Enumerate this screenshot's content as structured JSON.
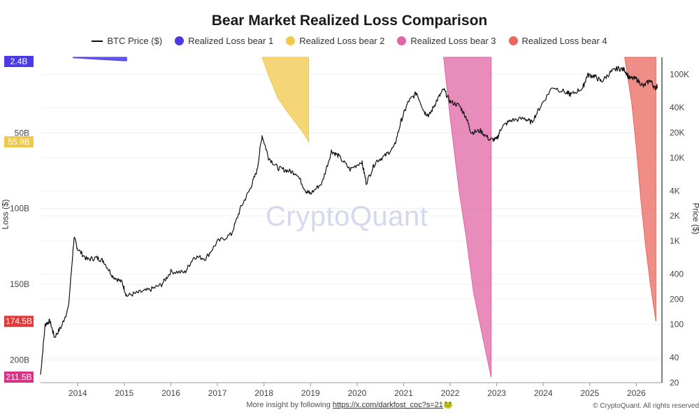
{
  "chart_data": {
    "type": "area",
    "title": "Bear Market Realized Loss Comparison",
    "legend_placement": "top-center",
    "legend": [
      {
        "label": "BTC Price ($)",
        "color": "#111111",
        "style": "line"
      },
      {
        "label": "Realized Loss bear 1",
        "color": "#4b3be0",
        "style": "dot"
      },
      {
        "label": "Realized Loss bear 2",
        "color": "#f0c84a",
        "style": "dot"
      },
      {
        "label": "Realized Loss bear 3",
        "color": "#e066a6",
        "style": "dot"
      },
      {
        "label": "Realized Loss bear 4",
        "color": "#e8685d",
        "style": "dot"
      }
    ],
    "x_axis": {
      "ticks": [
        "2014",
        "2015",
        "2016",
        "2017",
        "2018",
        "2019",
        "2020",
        "2021",
        "2022",
        "2023",
        "2024",
        "2025",
        "2026"
      ],
      "range": [
        2013.2,
        2026.55
      ]
    },
    "left_axis": {
      "label": "Loss ($)",
      "scale": "linear-inverted",
      "range_billion": [
        0,
        215
      ],
      "ticks": [
        "50B",
        "100B",
        "150B",
        "200B"
      ],
      "tick_values": [
        50,
        100,
        150,
        200
      ],
      "badges": [
        {
          "text": "2.4B",
          "value": 2.4,
          "color": "#4b3be0"
        },
        {
          "text": "55.9B",
          "value": 55.9,
          "color": "#f0c84a"
        },
        {
          "text": "174.5B",
          "value": 174.5,
          "color": "#e03a3a"
        },
        {
          "text": "211.5B",
          "value": 211.5,
          "color": "#d63384"
        }
      ]
    },
    "right_axis": {
      "label": "Price ($)",
      "scale": "log",
      "range": [
        20,
        160000
      ],
      "ticks": [
        "100K",
        "40K",
        "20K",
        "10K",
        "4K",
        "2K",
        "1K",
        "400",
        "200",
        "100",
        "40",
        "20"
      ],
      "tick_values": [
        100000,
        40000,
        20000,
        10000,
        4000,
        2000,
        1000,
        400,
        200,
        100,
        40,
        20
      ]
    },
    "price_series": {
      "name": "BTC Price ($)",
      "points": [
        [
          2013.2,
          25
        ],
        [
          2013.3,
          100
        ],
        [
          2013.4,
          110
        ],
        [
          2013.5,
          70
        ],
        [
          2013.65,
          95
        ],
        [
          2013.8,
          160
        ],
        [
          2013.92,
          1100
        ],
        [
          2014.0,
          800
        ],
        [
          2014.2,
          600
        ],
        [
          2014.4,
          630
        ],
        [
          2014.55,
          580
        ],
        [
          2014.75,
          380
        ],
        [
          2014.95,
          320
        ],
        [
          2015.05,
          220
        ],
        [
          2015.3,
          240
        ],
        [
          2015.55,
          260
        ],
        [
          2015.8,
          300
        ],
        [
          2016.0,
          430
        ],
        [
          2016.3,
          420
        ],
        [
          2016.5,
          650
        ],
        [
          2016.75,
          620
        ],
        [
          2017.0,
          980
        ],
        [
          2017.3,
          1200
        ],
        [
          2017.5,
          2500
        ],
        [
          2017.7,
          4200
        ],
        [
          2017.85,
          7000
        ],
        [
          2017.96,
          18500
        ],
        [
          2018.1,
          10000
        ],
        [
          2018.3,
          7500
        ],
        [
          2018.5,
          7000
        ],
        [
          2018.7,
          6500
        ],
        [
          2018.9,
          4000
        ],
        [
          2019.0,
          3700
        ],
        [
          2019.25,
          5000
        ],
        [
          2019.45,
          12000
        ],
        [
          2019.6,
          10500
        ],
        [
          2019.85,
          7200
        ],
        [
          2020.1,
          9000
        ],
        [
          2020.2,
          5000
        ],
        [
          2020.4,
          9000
        ],
        [
          2020.6,
          10500
        ],
        [
          2020.8,
          13500
        ],
        [
          2020.95,
          28000
        ],
        [
          2021.1,
          47000
        ],
        [
          2021.28,
          60000
        ],
        [
          2021.45,
          35000
        ],
        [
          2021.55,
          32000
        ],
        [
          2021.7,
          47000
        ],
        [
          2021.86,
          66000
        ],
        [
          2022.0,
          47000
        ],
        [
          2022.2,
          42000
        ],
        [
          2022.35,
          30000
        ],
        [
          2022.45,
          20000
        ],
        [
          2022.65,
          21000
        ],
        [
          2022.85,
          16500
        ],
        [
          2023.0,
          16500
        ],
        [
          2023.1,
          23000
        ],
        [
          2023.3,
          28000
        ],
        [
          2023.6,
          29500
        ],
        [
          2023.75,
          26500
        ],
        [
          2023.95,
          42000
        ],
        [
          2024.2,
          71000
        ],
        [
          2024.5,
          60000
        ],
        [
          2024.6,
          57000
        ],
        [
          2024.85,
          69000
        ],
        [
          2024.95,
          98000
        ],
        [
          2025.1,
          95000
        ],
        [
          2025.25,
          82000
        ],
        [
          2025.45,
          106000
        ],
        [
          2025.6,
          118000
        ],
        [
          2025.75,
          113000
        ],
        [
          2025.85,
          90000
        ],
        [
          2026.0,
          88000
        ],
        [
          2026.15,
          72000
        ],
        [
          2026.3,
          85000
        ],
        [
          2026.4,
          68000
        ],
        [
          2026.45,
          72000
        ]
      ]
    },
    "loss_series": [
      {
        "name": "Realized Loss bear 1",
        "color": "#4b3be0",
        "points": [
          [
            2013.9,
            0.3
          ],
          [
            2014.2,
            0.9
          ],
          [
            2014.5,
            1.5
          ],
          [
            2015.05,
            2.4
          ]
        ]
      },
      {
        "name": "Realized Loss bear 2",
        "color": "#f0c84a",
        "points": [
          [
            2017.96,
            0
          ],
          [
            2018.1,
            12
          ],
          [
            2018.3,
            27
          ],
          [
            2018.5,
            36
          ],
          [
            2018.7,
            44
          ],
          [
            2018.85,
            50
          ],
          [
            2018.96,
            55.9
          ]
        ]
      },
      {
        "name": "Realized Loss bear 3",
        "color": "#e066a6",
        "points": [
          [
            2021.86,
            0
          ],
          [
            2022.0,
            40
          ],
          [
            2022.2,
            90
          ],
          [
            2022.35,
            120
          ],
          [
            2022.5,
            155
          ],
          [
            2022.7,
            185
          ],
          [
            2022.88,
            211.5
          ]
        ]
      },
      {
        "name": "Realized Loss bear 4",
        "color": "#e8685d",
        "points": [
          [
            2025.75,
            0
          ],
          [
            2025.9,
            30
          ],
          [
            2026.0,
            60
          ],
          [
            2026.1,
            95
          ],
          [
            2026.2,
            125
          ],
          [
            2026.3,
            150
          ],
          [
            2026.42,
            174.5
          ]
        ]
      }
    ]
  },
  "watermark": "CryptoQuant",
  "footer": {
    "text": "More insight by following",
    "link": "https://x.com/darkfost_coc?s=21",
    "emoji": "🐸",
    "copyright": "© CryptoQuant. All rights reserved"
  }
}
